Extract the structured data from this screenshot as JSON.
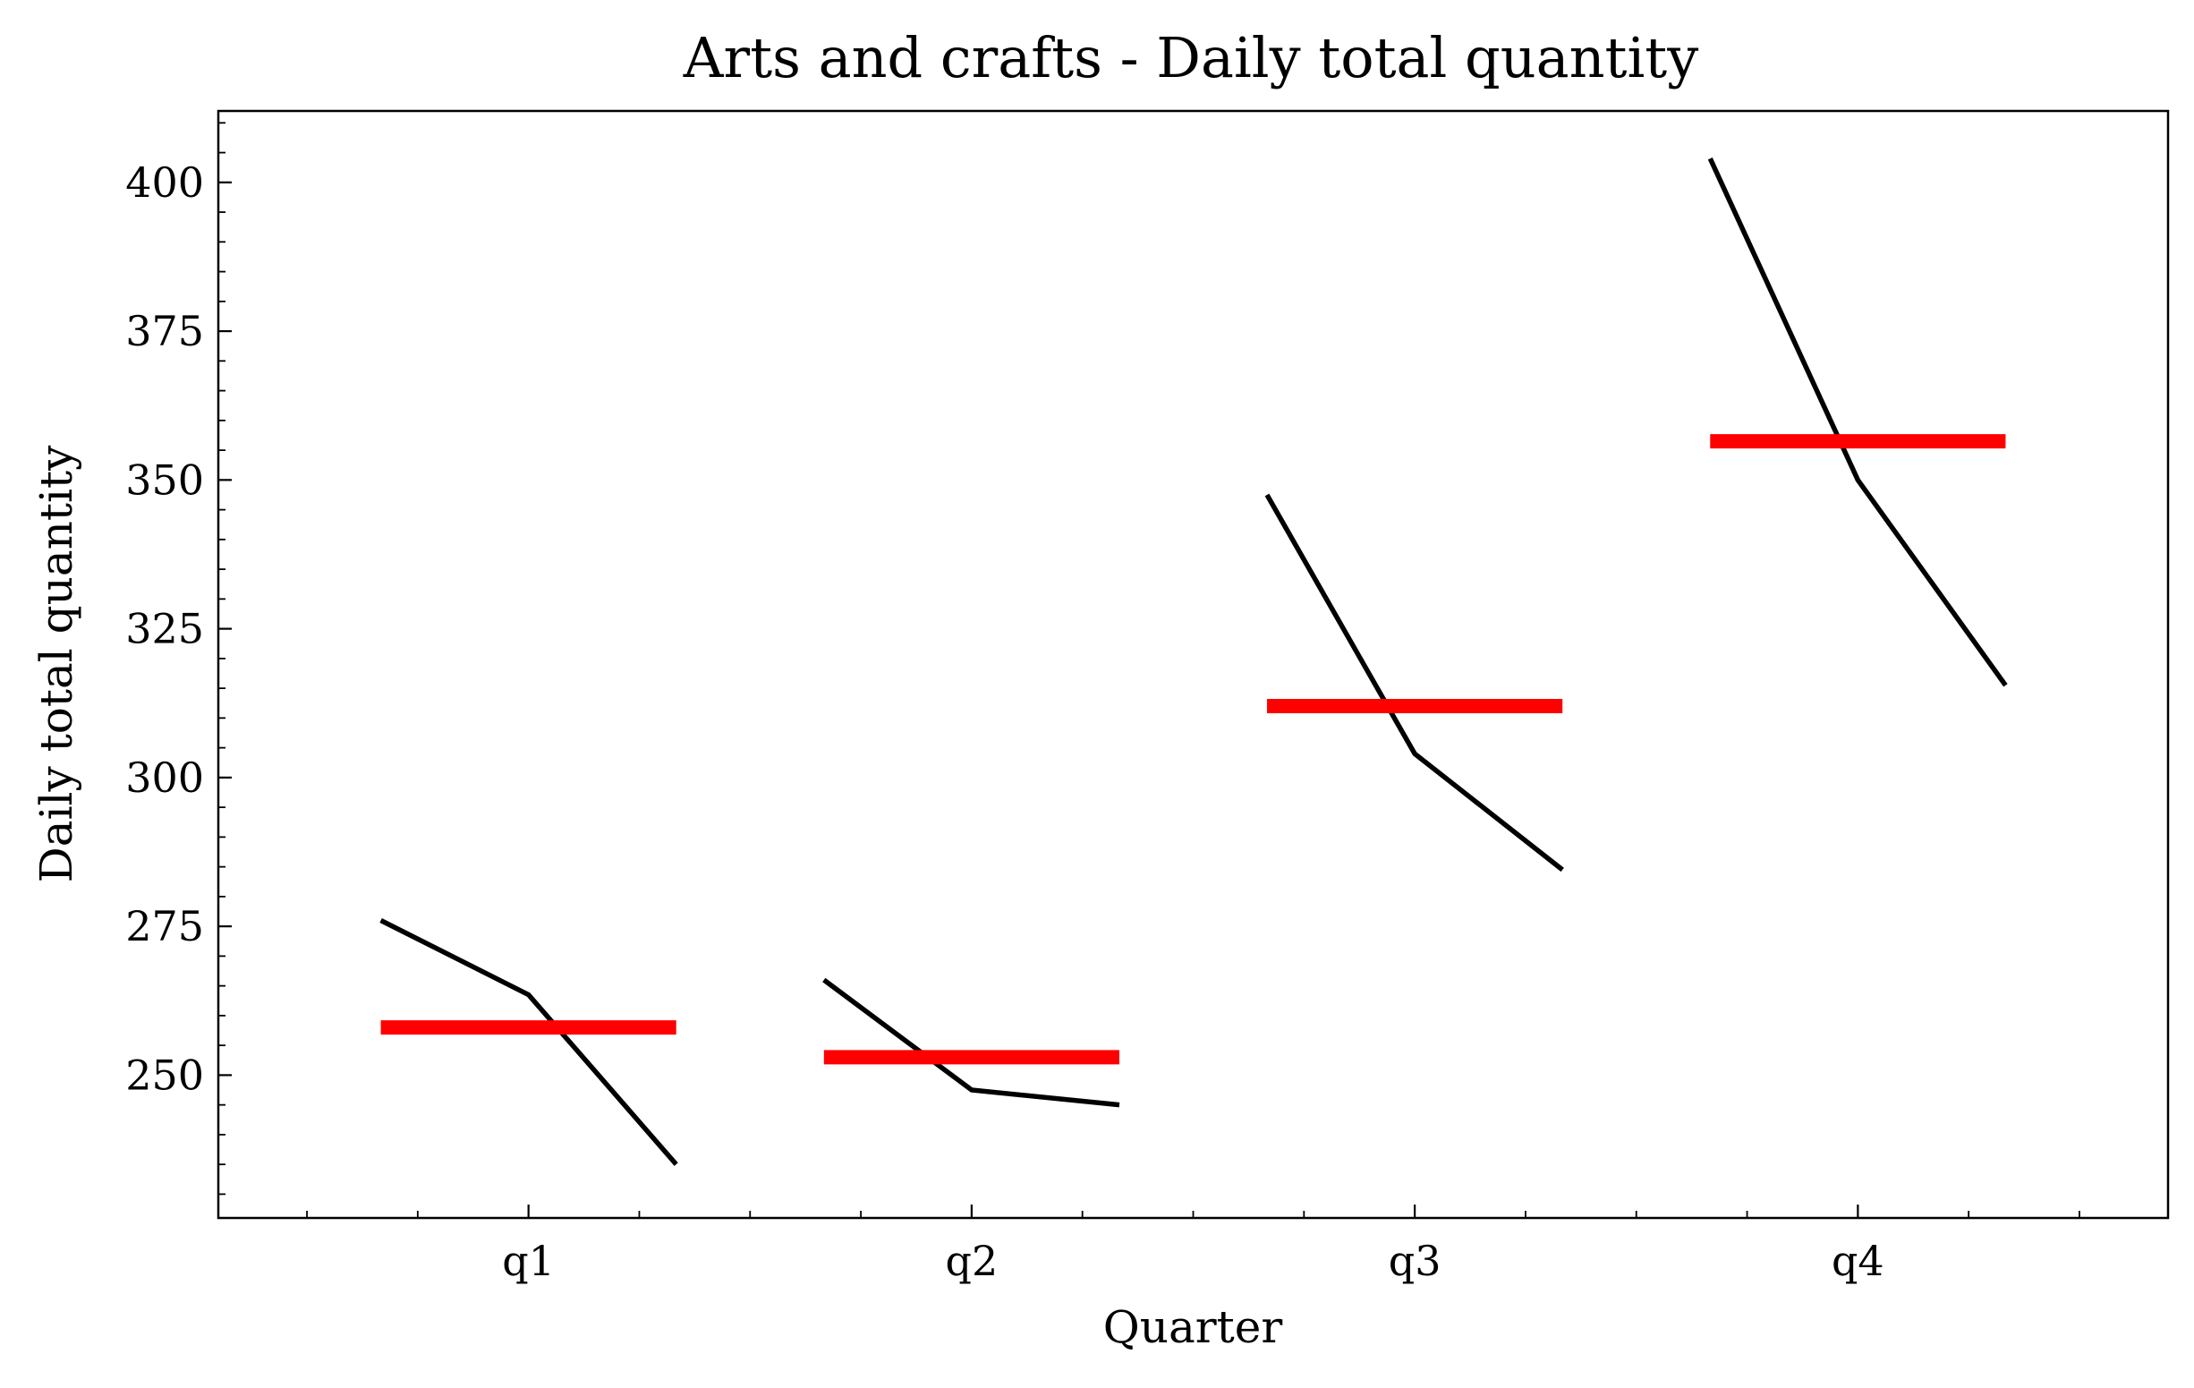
{
  "chart_data": {
    "type": "line",
    "title": "Arts and crafts - Daily total quantity",
    "xlabel": "Quarter",
    "ylabel": "Daily total quantity",
    "categories": [
      "q1",
      "q2",
      "q3",
      "q4"
    ],
    "ylim": [
      226,
      412
    ],
    "yticks": [
      250,
      275,
      300,
      325,
      350,
      375,
      400
    ],
    "grid": false,
    "series": [
      {
        "values": [
          [
            276,
            263.5,
            235
          ],
          [
            266,
            247.5,
            245
          ],
          [
            347.5,
            304,
            284.5
          ],
          [
            404,
            350,
            315.5
          ]
        ],
        "color": "#000000"
      },
      {
        "values": [
          258,
          253,
          312,
          356.5
        ],
        "color": "#ff0000"
      }
    ]
  }
}
